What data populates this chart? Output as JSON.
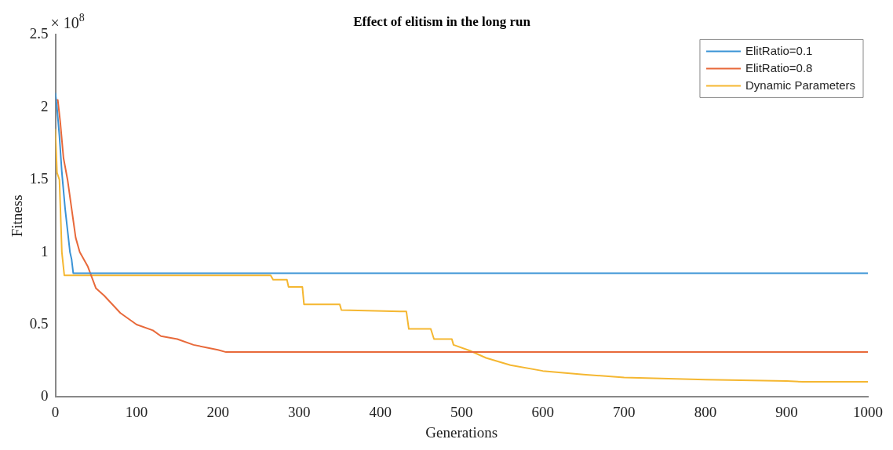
{
  "chart_data": {
    "type": "line",
    "title": "Effect of elitism in the long run",
    "xlabel": "Generations",
    "ylabel": "Fitness",
    "annotations": [
      "× 10$^{8}$"
    ],
    "xlim": [
      0,
      1000
    ],
    "xticks": [
      0,
      100,
      200,
      300,
      400,
      500,
      600,
      700,
      800,
      900,
      1000
    ],
    "ylim": [
      0,
      2.5
    ],
    "yticks": [
      0,
      0.5,
      1,
      1.5,
      2,
      2.5
    ],
    "grid": false,
    "legend": "top right",
    "marker": "none",
    "line_style": "solid",
    "series": [
      {
        "name": "ElitRatio=0.1",
        "color": "#3a93d6",
        "x": [
          0,
          2,
          5,
          8,
          12,
          15,
          18,
          20,
          22,
          1000
        ],
        "values": [
          2.1,
          2.0,
          1.8,
          1.55,
          1.3,
          1.15,
          1.0,
          0.95,
          0.855,
          0.855
        ]
      },
      {
        "name": "ElitRatio=0.8",
        "color": "#e8693a",
        "x": [
          0,
          3,
          6,
          10,
          15,
          20,
          25,
          30,
          40,
          50,
          60,
          80,
          100,
          120,
          130,
          150,
          170,
          200,
          210,
          1000
        ],
        "values": [
          2.05,
          2.05,
          1.9,
          1.65,
          1.5,
          1.3,
          1.1,
          1.0,
          0.9,
          0.75,
          0.7,
          0.58,
          0.5,
          0.46,
          0.42,
          0.4,
          0.36,
          0.325,
          0.31,
          0.31
        ]
      },
      {
        "name": "Dynamic Parameters",
        "color": "#f5b731",
        "x": [
          0,
          2,
          5,
          8,
          11,
          265,
          268,
          285,
          287,
          304,
          306,
          350,
          352,
          432,
          435,
          462,
          466,
          488,
          490,
          510,
          530,
          560,
          600,
          650,
          700,
          800,
          900,
          920,
          1000
        ],
        "values": [
          1.85,
          1.55,
          1.5,
          1.0,
          0.84,
          0.84,
          0.81,
          0.81,
          0.76,
          0.76,
          0.64,
          0.64,
          0.6,
          0.59,
          0.47,
          0.47,
          0.4,
          0.4,
          0.36,
          0.32,
          0.27,
          0.22,
          0.18,
          0.155,
          0.135,
          0.12,
          0.11,
          0.105,
          0.105
        ]
      }
    ]
  }
}
